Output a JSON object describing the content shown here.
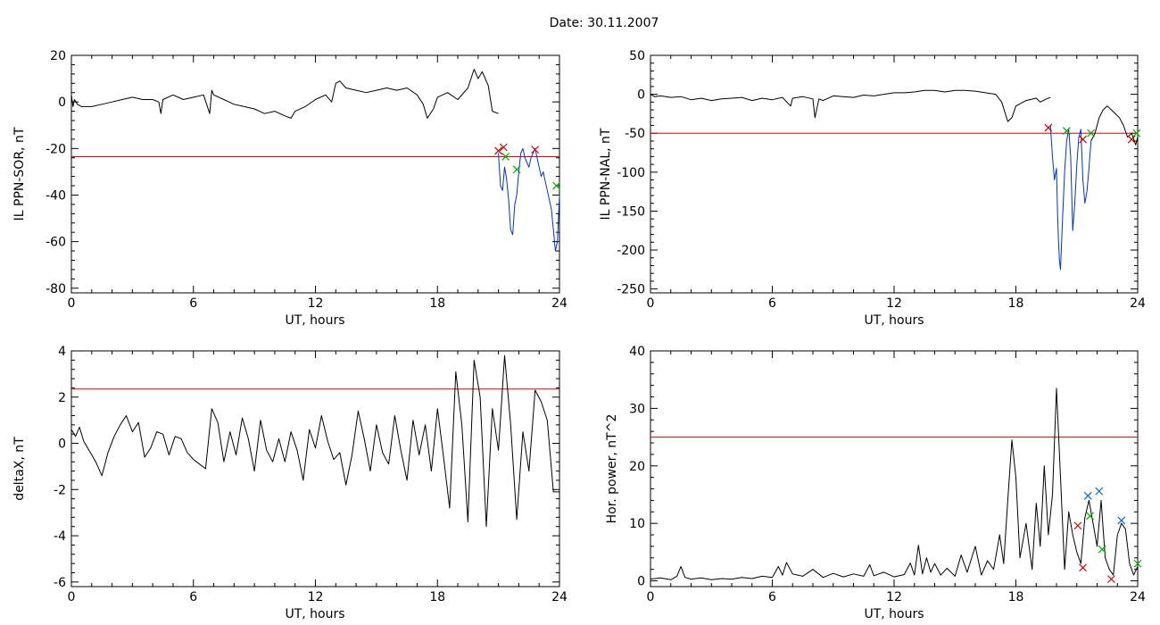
{
  "page_title": "Date:  30.11.2007",
  "chart_data": [
    {
      "type": "line",
      "ylabel": "IL PPN-SOR, nT",
      "xlabel": "UT, hours",
      "xlim": [
        0,
        24
      ],
      "ylim": [
        -82,
        20
      ],
      "x_ticks": [
        0,
        6,
        12,
        18,
        24
      ],
      "y_ticks": [
        -80,
        -60,
        -40,
        -20,
        0,
        20
      ],
      "threshold": -23.5,
      "series": [
        {
          "color": "#000000",
          "x": [
            0,
            0.08,
            0.15,
            0.3,
            0.5,
            1,
            1.5,
            2,
            2.5,
            3,
            3.5,
            4,
            4.3,
            4.4,
            4.5,
            5,
            5.5,
            6,
            6.5,
            6.8,
            6.9,
            7,
            7.5,
            8,
            8.5,
            9,
            9.5,
            10,
            10.5,
            10.8,
            11,
            11.5,
            12,
            12.5,
            12.8,
            13,
            13.2,
            13.5,
            14,
            14.5,
            15,
            15.5,
            16,
            16.5,
            17,
            17.3,
            17.5,
            17.8,
            18,
            18.5,
            19,
            19.5,
            19.8,
            20,
            20.2,
            20.3,
            20.5,
            20.7,
            21
          ],
          "y": [
            3,
            -2,
            1,
            -1,
            -2,
            -2,
            -1,
            0,
            1,
            2,
            1,
            1,
            0,
            -5,
            1,
            3,
            1,
            2,
            3,
            -5,
            5,
            3,
            1,
            -1,
            -2,
            -3,
            -5,
            -4,
            -6,
            -7,
            -4,
            -2,
            1,
            3,
            0,
            8,
            9,
            6,
            5,
            4,
            5,
            6,
            5,
            6,
            3,
            -1,
            -7,
            -3,
            2,
            4,
            1,
            6,
            14,
            10,
            13,
            11,
            7,
            -4,
            -5
          ]
        },
        {
          "color": "#0033cc",
          "x": [
            21,
            21.1,
            21.2,
            21.3,
            21.4,
            21.5,
            21.6,
            21.7,
            21.8,
            21.9,
            22,
            22.1,
            22.2,
            22.3,
            22.4,
            22.5,
            22.6,
            22.7,
            22.8,
            22.9,
            23,
            23.1,
            23.2,
            23.3,
            23.4,
            23.5,
            23.6,
            23.7,
            23.8,
            23.9,
            24
          ],
          "y": [
            -22,
            -36,
            -38,
            -28,
            -33,
            -42,
            -55,
            -57,
            -44,
            -40,
            -30,
            -22,
            -20,
            -24,
            -26,
            -28,
            -24,
            -22,
            -20,
            -24,
            -28,
            -32,
            -30,
            -34,
            -38,
            -42,
            -46,
            -55,
            -64,
            -60,
            -40
          ]
        }
      ],
      "markers": [
        {
          "x": 21.0,
          "y": -21,
          "color": "#cc0000"
        },
        {
          "x": 21.25,
          "y": -19.5,
          "color": "#cc0000"
        },
        {
          "x": 21.35,
          "y": -23.5,
          "color": "#00aa00"
        },
        {
          "x": 21.9,
          "y": -29,
          "color": "#00aa00"
        },
        {
          "x": 22.8,
          "y": -20.5,
          "color": "#cc0000"
        },
        {
          "x": 23.85,
          "y": -36,
          "color": "#00aa00"
        }
      ]
    },
    {
      "type": "line",
      "ylabel": "IL PPN-NAL, nT",
      "xlabel": "UT, hours",
      "xlim": [
        0,
        24
      ],
      "ylim": [
        -255,
        50
      ],
      "x_ticks": [
        0,
        6,
        12,
        18,
        24
      ],
      "y_ticks": [
        -250,
        -200,
        -150,
        -100,
        -50,
        0,
        50
      ],
      "threshold": -50,
      "series": [
        {
          "color": "#000000",
          "x": [
            0,
            0.2,
            0.5,
            1,
            1.5,
            2,
            2.5,
            3,
            3.5,
            4,
            4.5,
            5,
            5.5,
            6,
            6.5,
            6.9,
            7,
            7.5,
            8,
            8.1,
            8.3,
            8.5,
            9,
            9.5,
            10,
            10.5,
            11,
            11.5,
            12,
            12.5,
            13,
            13.5,
            14,
            14.5,
            15,
            15.5,
            16,
            16.5,
            17,
            17.3,
            17.6,
            17.8,
            18,
            18.5,
            19,
            19.2,
            19.5,
            19.7
          ],
          "y": [
            0,
            -3,
            -2,
            -4,
            -3,
            -7,
            -5,
            -8,
            -6,
            -5,
            -4,
            -8,
            -5,
            -7,
            -4,
            -15,
            -5,
            -3,
            -6,
            -30,
            -6,
            -8,
            -2,
            -3,
            -4,
            -1,
            -2,
            0,
            2,
            2,
            3,
            5,
            5,
            3,
            5,
            5,
            4,
            2,
            0,
            -10,
            -35,
            -30,
            -15,
            -8,
            -5,
            -10,
            -6,
            -4
          ]
        },
        {
          "color": "#0033cc",
          "x": [
            19.7,
            19.8,
            19.9,
            20.0,
            20.05,
            20.1,
            20.15,
            20.2,
            20.3,
            20.4,
            20.5,
            20.6,
            20.7,
            20.8,
            20.9,
            21.0,
            21.1,
            21.2,
            21.3,
            21.4,
            21.5,
            21.6,
            21.7
          ],
          "y": [
            -40,
            -80,
            -110,
            -95,
            -150,
            -190,
            -215,
            -225,
            -160,
            -100,
            -60,
            -45,
            -80,
            -175,
            -140,
            -90,
            -55,
            -45,
            -110,
            -140,
            -125,
            -95,
            -60
          ]
        },
        {
          "color": "#000000",
          "x": [
            21.7,
            21.9,
            22.1,
            22.3,
            22.5,
            22.7,
            22.9,
            23.1,
            23.3,
            23.5,
            23.7,
            23.9,
            24
          ],
          "y": [
            -60,
            -50,
            -30,
            -20,
            -15,
            -20,
            -25,
            -30,
            -40,
            -55,
            -50,
            -65,
            -55
          ]
        }
      ],
      "markers": [
        {
          "x": 19.6,
          "y": -43,
          "color": "#cc0000"
        },
        {
          "x": 20.5,
          "y": -47,
          "color": "#00aa00"
        },
        {
          "x": 21.3,
          "y": -58,
          "color": "#cc0000"
        },
        {
          "x": 21.7,
          "y": -50,
          "color": "#00aa00"
        },
        {
          "x": 23.7,
          "y": -58,
          "color": "#cc0000"
        },
        {
          "x": 23.95,
          "y": -50,
          "color": "#00aa00"
        }
      ]
    },
    {
      "type": "line",
      "ylabel": "deltaX, nT",
      "xlabel": "UT, hours",
      "xlim": [
        0,
        24
      ],
      "ylim": [
        -6.2,
        4
      ],
      "x_ticks": [
        0,
        6,
        12,
        18,
        24
      ],
      "y_ticks": [
        -6,
        -4,
        -2,
        0,
        2,
        4
      ],
      "threshold": 2.35,
      "series": [
        {
          "color": "#000000",
          "x": [
            0,
            0.2,
            0.4,
            0.6,
            0.8,
            1.0,
            1.2,
            1.5,
            1.8,
            2.1,
            2.4,
            2.7,
            3.0,
            3.3,
            3.6,
            3.9,
            4.2,
            4.5,
            4.8,
            5.1,
            5.4,
            5.7,
            6.0,
            6.3,
            6.6,
            6.9,
            7.2,
            7.5,
            7.8,
            8.1,
            8.4,
            8.7,
            9.0,
            9.3,
            9.6,
            9.9,
            10.2,
            10.5,
            10.8,
            11.1,
            11.4,
            11.7,
            12.0,
            12.3,
            12.6,
            12.9,
            13.2,
            13.5,
            13.8,
            14.1,
            14.4,
            14.7,
            15.0,
            15.3,
            15.6,
            15.9,
            16.2,
            16.5,
            16.8,
            17.1,
            17.4,
            17.7,
            18.0,
            18.3,
            18.6,
            18.9,
            19.2,
            19.5,
            19.8,
            20.1,
            20.4,
            20.7,
            21.0,
            21.3,
            21.6,
            21.9,
            22.2,
            22.5,
            22.8,
            23.1,
            23.4,
            23.7,
            24.0
          ],
          "y": [
            0.6,
            0.3,
            0.7,
            0.1,
            -0.2,
            -0.5,
            -0.8,
            -1.4,
            -0.4,
            0.3,
            0.8,
            1.2,
            0.5,
            0.9,
            -0.6,
            -0.2,
            0.5,
            0.4,
            -0.5,
            0.3,
            0.2,
            -0.4,
            -0.7,
            -0.9,
            -1.1,
            1.5,
            0.9,
            -0.8,
            0.5,
            -0.5,
            1.1,
            0.2,
            -1.2,
            1.0,
            -0.3,
            -0.8,
            0.2,
            -0.8,
            0.5,
            -0.3,
            -1.6,
            0.6,
            -0.2,
            1.2,
            0.1,
            -0.7,
            -0.4,
            -1.8,
            -0.5,
            1.4,
            0.2,
            -1.2,
            0.8,
            -0.4,
            -0.9,
            1.2,
            -0.3,
            -1.6,
            1.0,
            -0.5,
            0.8,
            -1.2,
            1.5,
            -0.6,
            -2.8,
            3.1,
            0.8,
            -3.4,
            3.6,
            2.0,
            -3.6,
            1.5,
            -0.3,
            3.8,
            0.8,
            -3.3,
            0.5,
            -1.2,
            2.3,
            1.8,
            1.0,
            -2.1,
            -2.1
          ]
        }
      ],
      "markers": []
    },
    {
      "type": "line",
      "ylabel": "Hor. power, nT^2",
      "xlabel": "UT, hours",
      "xlim": [
        0,
        24
      ],
      "ylim": [
        -1,
        40
      ],
      "x_ticks": [
        0,
        6,
        12,
        18,
        24
      ],
      "y_ticks": [
        0,
        10,
        20,
        30,
        40
      ],
      "threshold": 25,
      "series": [
        {
          "color": "#000000",
          "x": [
            0,
            0.5,
            1,
            1.3,
            1.5,
            1.7,
            2,
            2.5,
            3,
            3.5,
            4,
            4.5,
            5,
            5.5,
            6,
            6.3,
            6.5,
            6.7,
            7,
            7.5,
            8,
            8.5,
            9,
            9.5,
            10,
            10.5,
            10.8,
            11,
            11.5,
            12,
            12.5,
            12.8,
            13,
            13.2,
            13.4,
            13.6,
            13.8,
            14,
            14.3,
            14.6,
            15,
            15.3,
            15.6,
            16,
            16.3,
            16.6,
            16.9,
            17.2,
            17.4,
            17.6,
            17.8,
            18,
            18.2,
            18.5,
            18.8,
            19,
            19.2,
            19.4,
            19.6,
            19.8,
            20,
            20.2,
            20.4,
            20.6,
            20.8,
            21,
            21.2,
            21.4,
            21.6,
            21.8,
            22,
            22.2,
            22.4,
            22.6,
            22.8,
            23,
            23.2,
            23.4,
            23.6,
            23.8,
            24
          ],
          "y": [
            0.3,
            0.5,
            0.2,
            0.8,
            2.5,
            0.6,
            0.3,
            0.5,
            0.2,
            0.4,
            0.3,
            0.6,
            0.4,
            0.8,
            0.6,
            2.5,
            1.0,
            3.2,
            1.2,
            0.8,
            2.0,
            0.6,
            1.3,
            0.7,
            1.2,
            0.8,
            2.8,
            0.9,
            1.5,
            0.7,
            1.1,
            3.1,
            1.0,
            6.2,
            1.2,
            4.0,
            1.5,
            3.0,
            1.0,
            2.2,
            0.8,
            4.5,
            1.5,
            6.0,
            1.0,
            3.5,
            2.0,
            8.0,
            3.0,
            14.0,
            24.5,
            18.0,
            4.0,
            10.0,
            2.0,
            13.5,
            6.0,
            20.0,
            8.0,
            15.0,
            33.5,
            18.0,
            2.0,
            12.0,
            8.0,
            5.0,
            3.0,
            11.0,
            14.0,
            10.0,
            6.0,
            14.0,
            4.0,
            2.0,
            1.0,
            8.0,
            10.0,
            9.0,
            3.0,
            1.0,
            2.5
          ]
        }
      ],
      "markers": [
        {
          "x": 21.05,
          "y": 9.6,
          "color": "#cc0000"
        },
        {
          "x": 21.3,
          "y": 2.3,
          "color": "#cc0000"
        },
        {
          "x": 21.55,
          "y": 14.8,
          "color": "#0066dd"
        },
        {
          "x": 21.65,
          "y": 11.3,
          "color": "#00aa00"
        },
        {
          "x": 22.1,
          "y": 15.6,
          "color": "#0066dd"
        },
        {
          "x": 22.25,
          "y": 5.5,
          "color": "#00aa00"
        },
        {
          "x": 22.7,
          "y": 0.3,
          "color": "#cc0000"
        },
        {
          "x": 23.2,
          "y": 10.5,
          "color": "#0066dd"
        },
        {
          "x": 24.0,
          "y": 3.0,
          "color": "#00aa00"
        }
      ]
    }
  ]
}
